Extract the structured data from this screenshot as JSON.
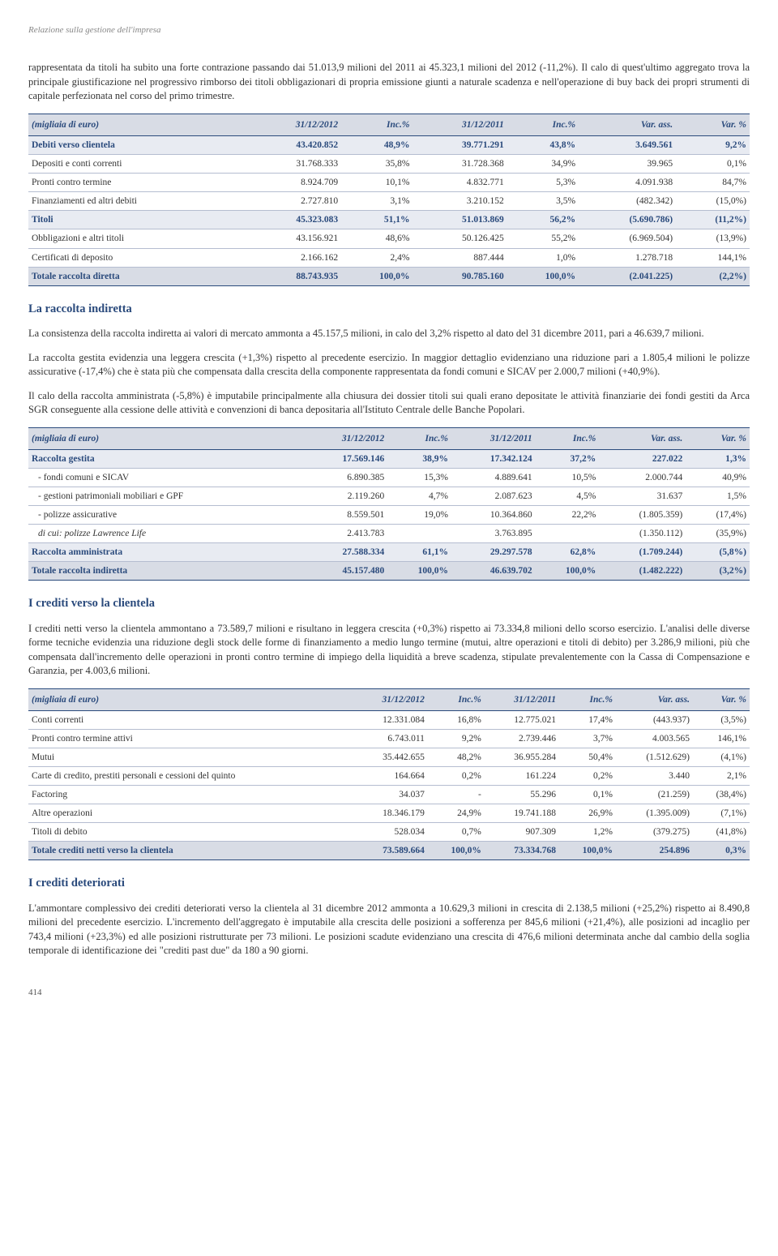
{
  "header": "Relazione sulla gestione dell'impresa",
  "para1": "rappresentata da titoli ha subito una forte contrazione passando dai 51.013,9 milioni del 2011 ai 45.323,1 milioni del 2012 (-11,2%). Il calo di quest'ultimo aggregato trova la principale giustificazione nel progressivo rimborso dei titoli obbligazionari di propria emissione giunti a naturale scadenza e nell'operazione di buy back dei propri strumenti di capitale perfezionata nel corso del primo trimestre.",
  "table1": {
    "headers": [
      "(migliaia di euro)",
      "31/12/2012",
      "Inc.%",
      "31/12/2011",
      "Inc.%",
      "Var. ass.",
      "Var. %"
    ],
    "rows": [
      {
        "cls": "highlight",
        "c": [
          "Debiti verso clientela",
          "43.420.852",
          "48,9%",
          "39.771.291",
          "43,8%",
          "3.649.561",
          "9,2%"
        ]
      },
      {
        "cls": "",
        "c": [
          "Depositi e conti correnti",
          "31.768.333",
          "35,8%",
          "31.728.368",
          "34,9%",
          "39.965",
          "0,1%"
        ]
      },
      {
        "cls": "",
        "c": [
          "Pronti contro termine",
          "8.924.709",
          "10,1%",
          "4.832.771",
          "5,3%",
          "4.091.938",
          "84,7%"
        ]
      },
      {
        "cls": "",
        "c": [
          "Finanziamenti ed altri debiti",
          "2.727.810",
          "3,1%",
          "3.210.152",
          "3,5%",
          "(482.342)",
          "(15,0%)"
        ]
      },
      {
        "cls": "highlight",
        "c": [
          "Titoli",
          "45.323.083",
          "51,1%",
          "51.013.869",
          "56,2%",
          "(5.690.786)",
          "(11,2%)"
        ]
      },
      {
        "cls": "",
        "c": [
          "Obbligazioni e altri titoli",
          "43.156.921",
          "48,6%",
          "50.126.425",
          "55,2%",
          "(6.969.504)",
          "(13,9%)"
        ]
      },
      {
        "cls": "",
        "c": [
          "Certificati di deposito",
          "2.166.162",
          "2,4%",
          "887.444",
          "1,0%",
          "1.278.718",
          "144,1%"
        ]
      },
      {
        "cls": "total",
        "c": [
          "Totale raccolta diretta",
          "88.743.935",
          "100,0%",
          "90.785.160",
          "100,0%",
          "(2.041.225)",
          "(2,2%)"
        ]
      }
    ]
  },
  "sec1_title": "La raccolta indiretta",
  "para2a": "La consistenza della raccolta indiretta ai valori di mercato ammonta a 45.157,5 milioni, in calo del 3,2% rispetto al dato del 31 dicembre 2011, pari a 46.639,7 milioni.",
  "para2b": "La raccolta gestita evidenzia una leggera crescita (+1,3%) rispetto al precedente esercizio. In maggior dettaglio evidenziano una riduzione pari a 1.805,4 milioni le polizze assicurative (-17,4%) che è stata più che compensata dalla crescita della componente rappresentata da fondi comuni e SICAV per 2.000,7 milioni (+40,9%).",
  "para2c": "Il calo della raccolta amministrata (-5,8%) è imputabile principalmente alla chiusura dei dossier titoli sui quali erano depositate le attività finanziarie dei fondi gestiti da Arca SGR conseguente alla cessione delle attività e convenzioni di banca depositaria all'Istituto Centrale delle Banche Popolari.",
  "table2": {
    "headers": [
      "(migliaia di euro)",
      "31/12/2012",
      "Inc.%",
      "31/12/2011",
      "Inc.%",
      "Var. ass.",
      "Var. %"
    ],
    "rows": [
      {
        "cls": "highlight",
        "c": [
          "Raccolta gestita",
          "17.569.146",
          "38,9%",
          "17.342.124",
          "37,2%",
          "227.022",
          "1,3%"
        ]
      },
      {
        "cls": "indent",
        "c": [
          "- fondi comuni e SICAV",
          "6.890.385",
          "15,3%",
          "4.889.641",
          "10,5%",
          "2.000.744",
          "40,9%"
        ]
      },
      {
        "cls": "indent",
        "c": [
          "- gestioni patrimoniali mobiliari e GPF",
          "2.119.260",
          "4,7%",
          "2.087.623",
          "4,5%",
          "31.637",
          "1,5%"
        ]
      },
      {
        "cls": "indent",
        "c": [
          "- polizze assicurative",
          "8.559.501",
          "19,0%",
          "10.364.860",
          "22,2%",
          "(1.805.359)",
          "(17,4%)"
        ]
      },
      {
        "cls": "italic",
        "c": [
          "di cui: polizze Lawrence Life",
          "2.413.783",
          "",
          "3.763.895",
          "",
          "(1.350.112)",
          "(35,9%)"
        ]
      },
      {
        "cls": "highlight",
        "c": [
          "Raccolta amministrata",
          "27.588.334",
          "61,1%",
          "29.297.578",
          "62,8%",
          "(1.709.244)",
          "(5,8%)"
        ]
      },
      {
        "cls": "total",
        "c": [
          "Totale raccolta indiretta",
          "45.157.480",
          "100,0%",
          "46.639.702",
          "100,0%",
          "(1.482.222)",
          "(3,2%)"
        ]
      }
    ]
  },
  "sec2_title": "I crediti verso la clientela",
  "para3": "I crediti netti verso la clientela ammontano a 73.589,7 milioni e risultano in leggera crescita (+0,3%) rispetto ai 73.334,8 milioni dello scorso esercizio. L'analisi delle diverse forme tecniche evidenzia una riduzione degli stock delle forme di finanziamento a medio lungo termine (mutui, altre operazioni e titoli di debito) per 3.286,9 milioni, più che compensata dall'incremento delle operazioni in pronti contro termine di impiego della liquidità a breve scadenza, stipulate prevalentemente con la Cassa di Compensazione e Garanzia, per 4.003,6 milioni.",
  "table3": {
    "headers": [
      "(migliaia di euro)",
      "31/12/2012",
      "Inc.%",
      "31/12/2011",
      "Inc.%",
      "Var. ass.",
      "Var. %"
    ],
    "rows": [
      {
        "cls": "",
        "c": [
          "Conti correnti",
          "12.331.084",
          "16,8%",
          "12.775.021",
          "17,4%",
          "(443.937)",
          "(3,5%)"
        ]
      },
      {
        "cls": "",
        "c": [
          "Pronti contro termine attivi",
          "6.743.011",
          "9,2%",
          "2.739.446",
          "3,7%",
          "4.003.565",
          "146,1%"
        ]
      },
      {
        "cls": "",
        "c": [
          "Mutui",
          "35.442.655",
          "48,2%",
          "36.955.284",
          "50,4%",
          "(1.512.629)",
          "(4,1%)"
        ]
      },
      {
        "cls": "",
        "c": [
          "Carte di credito, prestiti personali e cessioni del quinto",
          "164.664",
          "0,2%",
          "161.224",
          "0,2%",
          "3.440",
          "2,1%"
        ]
      },
      {
        "cls": "",
        "c": [
          "Factoring",
          "34.037",
          "-",
          "55.296",
          "0,1%",
          "(21.259)",
          "(38,4%)"
        ]
      },
      {
        "cls": "",
        "c": [
          "Altre operazioni",
          "18.346.179",
          "24,9%",
          "19.741.188",
          "26,9%",
          "(1.395.009)",
          "(7,1%)"
        ]
      },
      {
        "cls": "",
        "c": [
          "Titoli di debito",
          "528.034",
          "0,7%",
          "907.309",
          "1,2%",
          "(379.275)",
          "(41,8%)"
        ]
      },
      {
        "cls": "total",
        "c": [
          "Totale crediti netti verso la clientela",
          "73.589.664",
          "100,0%",
          "73.334.768",
          "100,0%",
          "254.896",
          "0,3%"
        ]
      }
    ]
  },
  "sec3_title": "I crediti deteriorati",
  "para4": "L'ammontare complessivo dei crediti deteriorati verso la clientela al 31 dicembre 2012 ammonta a 10.629,3 milioni in crescita di 2.138,5 milioni (+25,2%) rispetto ai 8.490,8 milioni del precedente esercizio. L'incremento dell'aggregato è imputabile alla crescita delle posizioni a sofferenza per 845,6 milioni (+21,4%), alle posizioni ad incaglio per 743,4 milioni (+23,3%) ed alle posizioni ristrutturate per 73 milioni. Le posizioni scadute evidenziano una crescita di 476,6 milioni determinata anche dal cambio della soglia temporale di identificazione dei \"crediti past due\" da 180 a 90 giorni.",
  "page_num": "414"
}
